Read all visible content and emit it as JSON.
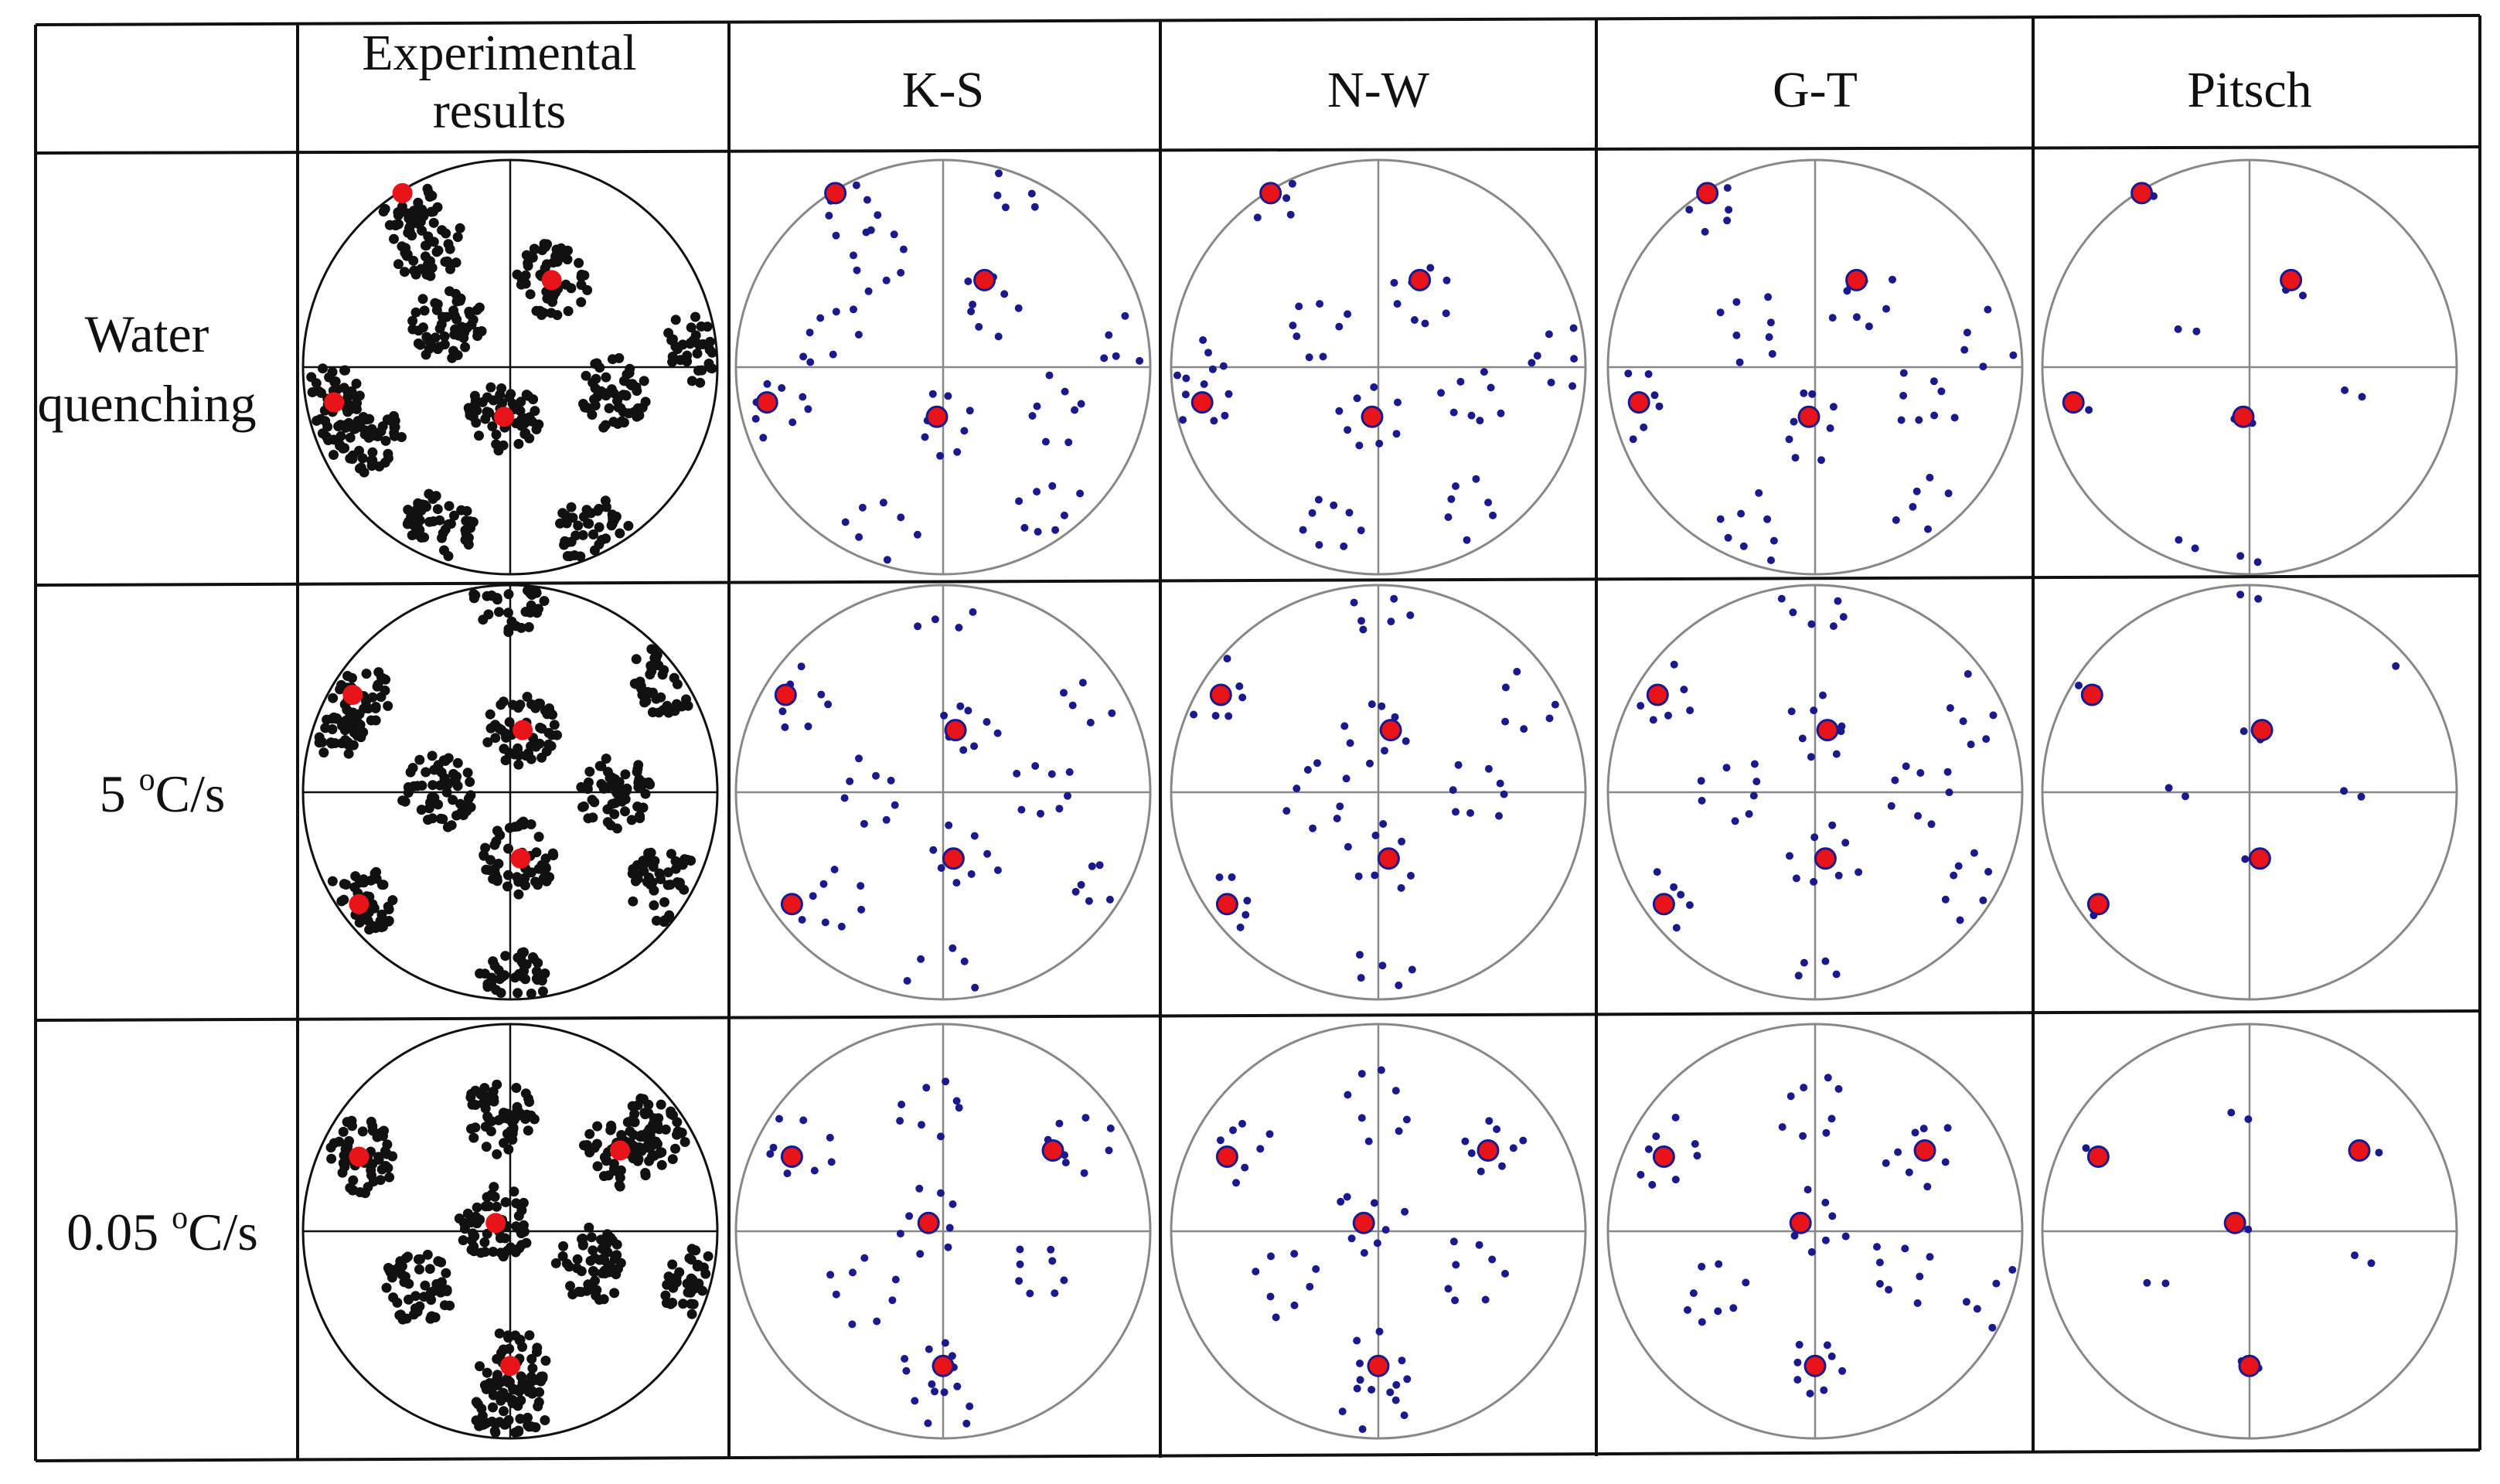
{
  "figure": {
    "corner_label": "",
    "columns": [
      {
        "id": "exp",
        "label_lines": [
          "Experimental",
          "results"
        ],
        "kind": "experimental"
      },
      {
        "id": "ks",
        "label_lines": [
          "K-S"
        ],
        "kind": "model"
      },
      {
        "id": "nw",
        "label_lines": [
          "N-W"
        ],
        "kind": "model"
      },
      {
        "id": "gt",
        "label_lines": [
          "G-T"
        ],
        "kind": "model"
      },
      {
        "id": "pitsch",
        "label_lines": [
          "Pitsch"
        ],
        "kind": "model"
      }
    ],
    "rows": [
      {
        "id": "wq",
        "label_lines": [
          "Water",
          "quenching"
        ]
      },
      {
        "id": "r5",
        "label_main": "5 ",
        "label_sup": "o",
        "label_tail": "C/s"
      },
      {
        "id": "r005",
        "label_main": "0.05 ",
        "label_sup": "o",
        "label_tail": "C/s"
      }
    ],
    "colors": {
      "experimental_point": "#111111",
      "model_point": "#1a1a8c",
      "highlight_point": "#e8141a",
      "grid_line": "#111111",
      "circle_outline": "#888888"
    },
    "pole_figures": {
      "wq": {
        "red": [
          [
            -0.52,
            -0.84
          ],
          [
            0.2,
            -0.42
          ],
          [
            -0.85,
            0.17
          ],
          [
            -0.03,
            0.24
          ]
        ],
        "exp_clusters": [
          [
            -0.52,
            -0.84
          ],
          [
            -0.4,
            -0.6
          ],
          [
            0.2,
            -0.42
          ],
          [
            -0.3,
            -0.2
          ],
          [
            -0.85,
            0.17
          ],
          [
            -0.7,
            0.35
          ],
          [
            -0.03,
            0.24
          ],
          [
            0.5,
            0.13
          ],
          [
            -0.35,
            0.78
          ],
          [
            0.4,
            0.8
          ],
          [
            0.92,
            -0.1
          ]
        ],
        "ks": [
          [
            -0.46,
            -0.78
          ],
          [
            0.23,
            -0.3
          ],
          [
            -0.56,
            -0.16
          ],
          [
            -0.78,
            0.2
          ],
          [
            0.0,
            0.3
          ],
          [
            0.55,
            0.2
          ],
          [
            -0.3,
            0.78
          ],
          [
            0.5,
            0.68
          ],
          [
            0.9,
            -0.15
          ],
          [
            0.35,
            -0.88
          ],
          [
            -0.3,
            -0.5
          ]
        ],
        "nw": [
          [
            -0.52,
            -0.85
          ],
          [
            0.19,
            -0.33
          ],
          [
            -0.3,
            -0.2
          ],
          [
            -0.88,
            0.16
          ],
          [
            -0.05,
            0.26
          ],
          [
            0.45,
            0.15
          ],
          [
            -0.25,
            0.75
          ],
          [
            0.45,
            0.7
          ],
          [
            0.85,
            -0.05
          ],
          [
            -0.9,
            -0.02
          ]
        ],
        "gt": [
          [
            -0.52,
            -0.82
          ],
          [
            0.23,
            -0.32
          ],
          [
            -0.3,
            -0.18
          ],
          [
            -0.86,
            0.17
          ],
          [
            -0.02,
            0.28
          ],
          [
            0.53,
            0.15
          ],
          [
            -0.3,
            0.78
          ],
          [
            0.55,
            0.7
          ],
          [
            0.88,
            -0.15
          ]
        ],
        "pitsch": [
          [
            -0.5,
            -0.85
          ],
          [
            0.22,
            -0.37
          ],
          [
            -0.82,
            0.2
          ],
          [
            -0.03,
            0.26
          ],
          [
            0.5,
            0.13
          ],
          [
            -0.3,
            -0.18
          ],
          [
            0.0,
            0.92
          ],
          [
            -0.3,
            0.85
          ]
        ]
      },
      "r5": {
        "red": [
          [
            -0.76,
            -0.47
          ],
          [
            0.06,
            -0.3
          ],
          [
            -0.73,
            0.54
          ],
          [
            0.05,
            0.32
          ]
        ],
        "exp_clusters": [
          [
            -0.76,
            -0.47
          ],
          [
            0.06,
            -0.3
          ],
          [
            -0.73,
            0.54
          ],
          [
            0.05,
            0.32
          ],
          [
            -0.35,
            0.0
          ],
          [
            0.5,
            0.0
          ],
          [
            0.0,
            -0.95
          ],
          [
            0.0,
            0.93
          ],
          [
            0.75,
            -0.55
          ],
          [
            0.75,
            0.45
          ],
          [
            -0.85,
            -0.35
          ]
        ],
        "ks": [
          [
            -0.7,
            -0.44
          ],
          [
            0.11,
            -0.3
          ],
          [
            -0.55,
            0.53
          ],
          [
            0.1,
            0.32
          ],
          [
            -0.35,
            0.0
          ],
          [
            0.5,
            0.0
          ],
          [
            0.0,
            -0.92
          ],
          [
            0.0,
            0.92
          ],
          [
            0.75,
            -0.45
          ],
          [
            0.75,
            0.45
          ]
        ],
        "nw": [
          [
            -0.76,
            -0.47
          ],
          [
            0.01,
            -0.3
          ],
          [
            -0.73,
            0.56
          ],
          [
            0.01,
            0.32
          ],
          [
            -0.3,
            0.0
          ],
          [
            0.5,
            0.0
          ],
          [
            0.0,
            -0.9
          ],
          [
            0.0,
            0.92
          ],
          [
            0.75,
            -0.45
          ]
        ],
        "gt": [
          [
            -0.75,
            -0.47
          ],
          [
            0.03,
            -0.3
          ],
          [
            -0.72,
            0.54
          ],
          [
            0.05,
            0.32
          ],
          [
            -0.38,
            0.0
          ],
          [
            0.5,
            0.0
          ],
          [
            0.0,
            -0.9
          ],
          [
            0.0,
            0.92
          ],
          [
            0.78,
            -0.4
          ],
          [
            0.75,
            0.45
          ]
        ],
        "pitsch": [
          [
            -0.78,
            -0.51
          ],
          [
            0.01,
            -0.27
          ],
          [
            -0.79,
            0.57
          ],
          [
            0.02,
            0.34
          ],
          [
            -0.35,
            0.0
          ],
          [
            0.5,
            0.0
          ],
          [
            0.0,
            -0.95
          ],
          [
            0.75,
            -0.6
          ]
        ]
      },
      "r005": {
        "red": [
          [
            -0.73,
            -0.36
          ],
          [
            0.53,
            -0.39
          ],
          [
            -0.07,
            -0.04
          ],
          [
            0.0,
            0.65
          ]
        ],
        "exp_clusters": [
          [
            -0.73,
            -0.36
          ],
          [
            0.53,
            -0.39
          ],
          [
            -0.07,
            -0.04
          ],
          [
            0.0,
            0.65
          ],
          [
            -0.05,
            -0.55
          ],
          [
            -0.45,
            0.28
          ],
          [
            0.4,
            0.16
          ],
          [
            0.68,
            -0.48
          ],
          [
            0.9,
            0.25
          ],
          [
            0.0,
            0.88
          ]
        ],
        "ks": [
          [
            -0.7,
            -0.4
          ],
          [
            0.65,
            -0.43
          ],
          [
            -0.07,
            -0.05
          ],
          [
            -0.05,
            0.65
          ],
          [
            -0.4,
            0.28
          ],
          [
            0.45,
            0.2
          ],
          [
            -0.05,
            -0.6
          ],
          [
            0.0,
            0.88
          ]
        ],
        "nw": [
          [
            -0.68,
            -0.4
          ],
          [
            0.57,
            -0.41
          ],
          [
            -0.04,
            -0.05
          ],
          [
            0.0,
            0.65
          ],
          [
            -0.45,
            0.25
          ],
          [
            0.45,
            0.2
          ],
          [
            0.0,
            -0.6
          ],
          [
            0.0,
            0.88
          ]
        ],
        "gt": [
          [
            -0.72,
            -0.38
          ],
          [
            0.51,
            -0.38
          ],
          [
            0.0,
            -0.03
          ],
          [
            0.0,
            0.65
          ],
          [
            -0.5,
            0.3
          ],
          [
            0.4,
            0.2
          ],
          [
            0.0,
            -0.58
          ],
          [
            0.9,
            0.35
          ]
        ],
        "pitsch": [
          [
            -0.75,
            -0.38
          ],
          [
            0.58,
            -0.38
          ],
          [
            -0.05,
            -0.02
          ],
          [
            0.0,
            0.65
          ],
          [
            -0.45,
            0.25
          ],
          [
            0.55,
            0.13
          ],
          [
            -0.05,
            -0.55
          ]
        ]
      }
    }
  }
}
